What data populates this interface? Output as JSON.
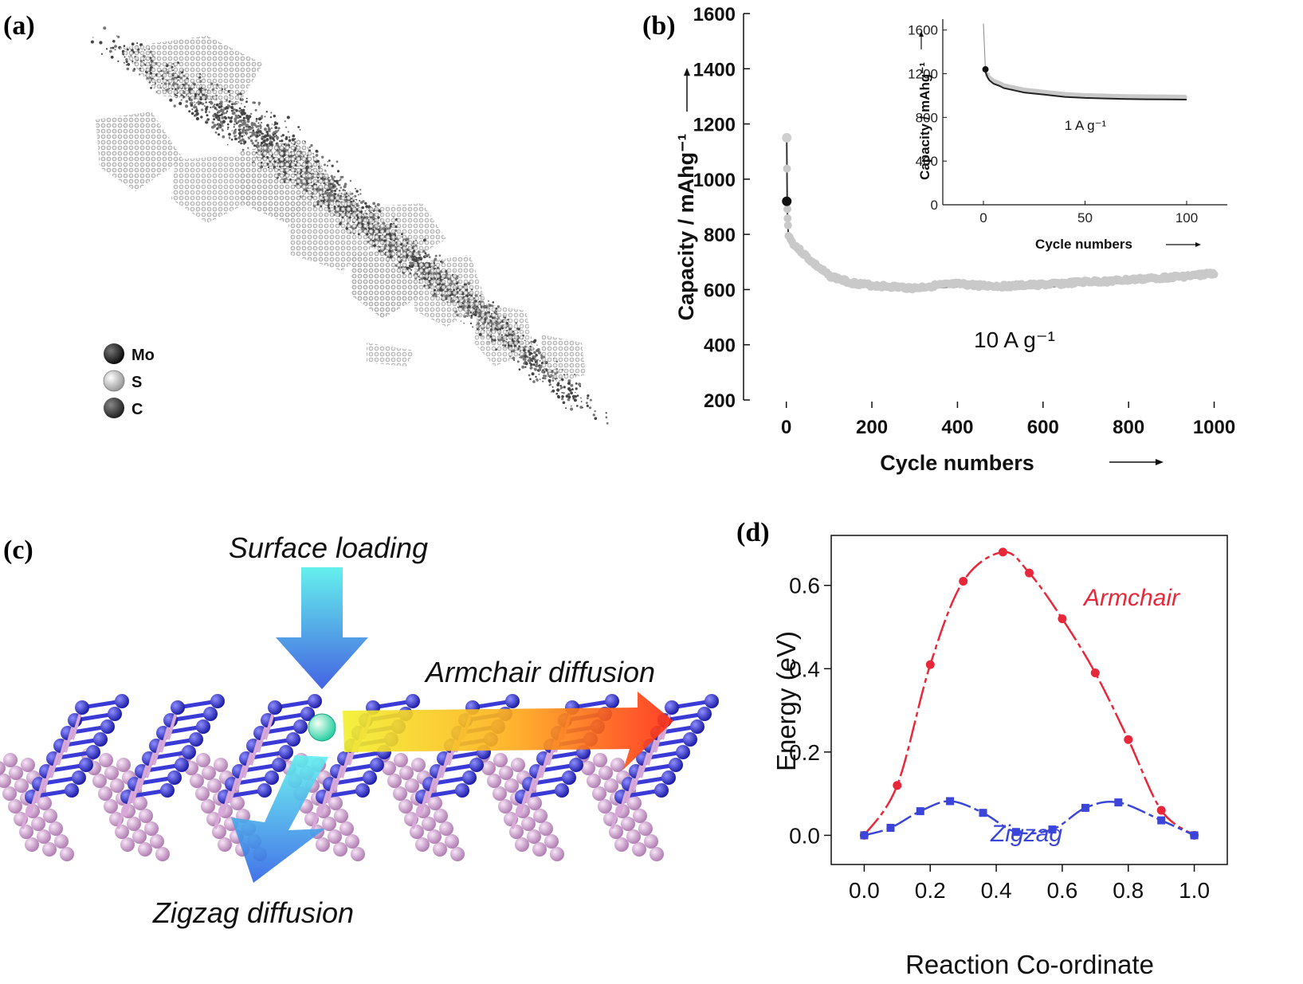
{
  "panels": {
    "a": {
      "label": "(a)",
      "legend": [
        {
          "name": "Mo",
          "color": "#1a1a1a"
        },
        {
          "name": "S",
          "color": "#d9d9d9"
        },
        {
          "name": "C",
          "color": "#333333"
        }
      ]
    },
    "b": {
      "label": "(b)"
    },
    "c": {
      "label": "(c)",
      "surface_label": "Surface loading",
      "armchair_label": "Armchair diffusion",
      "zigzag_label": "Zigzag diffusion",
      "colors": {
        "substrate_blue": "#3a3ad6",
        "substrate_pink": "#d8a9d8",
        "arrow_cyan": "#4ee6e6",
        "arrow_red": "#ff3d10"
      }
    },
    "d": {
      "label": "(d)"
    }
  },
  "chart_data": [
    {
      "type": "scatter",
      "panel": "b",
      "xlabel": "Cycle numbers",
      "ylabel": "Capacity / mAhg⁻¹",
      "annotation": "10 A g⁻¹",
      "xlim": [
        -100,
        1040
      ],
      "ylim": [
        200,
        1600
      ],
      "xticks": [
        0,
        200,
        400,
        600,
        800,
        1000
      ],
      "yticks": [
        200,
        400,
        600,
        800,
        1000,
        1200,
        1400,
        1600
      ],
      "series": [
        {
          "x": [
            1,
            2,
            3,
            5,
            10,
            20,
            40,
            60,
            80,
            100,
            150,
            200,
            250,
            300,
            350,
            400,
            450,
            500,
            550,
            600,
            650,
            700,
            750,
            800,
            850,
            900,
            950,
            1000
          ],
          "values": [
            1150,
            920,
            860,
            800,
            780,
            760,
            730,
            700,
            675,
            650,
            625,
            615,
            610,
            605,
            615,
            620,
            615,
            612,
            615,
            618,
            622,
            628,
            630,
            635,
            640,
            645,
            650,
            660
          ]
        }
      ]
    },
    {
      "type": "scatter",
      "panel": "b-inset",
      "xlabel": "Cycle numbers",
      "ylabel": "Capacity / mAhg⁻¹",
      "annotation": "1 A g⁻¹",
      "xlim": [
        -20,
        120
      ],
      "ylim": [
        0,
        1700
      ],
      "xticks": [
        0,
        50,
        100
      ],
      "yticks": [
        0,
        400,
        800,
        1200,
        1600
      ],
      "series": [
        {
          "x": [
            0,
            1,
            2,
            3,
            5,
            8,
            10,
            15,
            20,
            30,
            40,
            50,
            60,
            70,
            80,
            90,
            100
          ],
          "values": [
            1660,
            1240,
            1190,
            1160,
            1130,
            1110,
            1090,
            1070,
            1050,
            1030,
            1010,
            1000,
            995,
            990,
            988,
            987,
            985
          ]
        }
      ]
    },
    {
      "type": "line",
      "panel": "d",
      "xlabel": "Reaction Co-ordinate",
      "ylabel": "Energy (eV)",
      "xlim": [
        -0.1,
        1.1
      ],
      "ylim": [
        -0.07,
        0.72
      ],
      "xticks": [
        0.0,
        0.2,
        0.4,
        0.6,
        0.8,
        1.0
      ],
      "yticks": [
        0.0,
        0.2,
        0.4,
        0.6
      ],
      "series": [
        {
          "name": "Armchair",
          "color": "#e8283a",
          "x": [
            0.0,
            0.1,
            0.2,
            0.3,
            0.42,
            0.5,
            0.6,
            0.7,
            0.8,
            0.9,
            1.0
          ],
          "values": [
            0.0,
            0.12,
            0.41,
            0.61,
            0.68,
            0.63,
            0.52,
            0.39,
            0.23,
            0.06,
            0.0
          ]
        },
        {
          "name": "Zigzag",
          "color": "#3b46d8",
          "x": [
            0.0,
            0.08,
            0.17,
            0.26,
            0.36,
            0.46,
            0.57,
            0.67,
            0.77,
            0.9,
            1.0
          ],
          "values": [
            0.0,
            0.018,
            0.058,
            0.082,
            0.054,
            0.008,
            0.014,
            0.066,
            0.079,
            0.036,
            0.0
          ]
        }
      ]
    }
  ]
}
